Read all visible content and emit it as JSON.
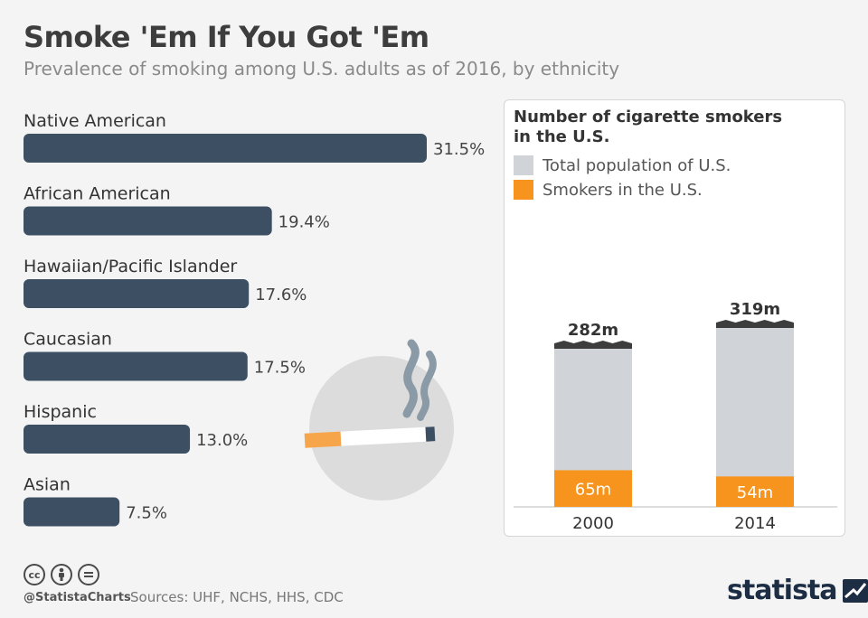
{
  "header": {
    "title": "Smoke 'Em If You Got 'Em",
    "subtitle": "Prevalence of smoking among U.S. adults as of 2016, by ethnicity"
  },
  "chart_data": [
    {
      "type": "bar",
      "orientation": "horizontal",
      "categories": [
        "Native American",
        "African American",
        "Hawaiian/Pacific Islander",
        "Caucasian",
        "Hispanic",
        "Asian"
      ],
      "values": [
        31.5,
        19.4,
        17.6,
        17.5,
        13.0,
        7.5
      ],
      "value_labels": [
        "31.5%",
        "19.4%",
        "17.6%",
        "17.5%",
        "13.0%",
        "7.5%"
      ],
      "unit": "%",
      "color": "#3d4f63",
      "grid": false
    },
    {
      "type": "bar",
      "stacked": true,
      "title": "Number of cigarette smokers in the U.S.",
      "categories": [
        "2000",
        "2014"
      ],
      "series": [
        {
          "name": "Total population of U.S.",
          "values": [
            282,
            319
          ],
          "labels": [
            "282m",
            "319m"
          ],
          "color": "#d0d4d8"
        },
        {
          "name": "Smokers in the U.S.",
          "values": [
            65,
            54
          ],
          "labels": [
            "65m",
            "54m"
          ],
          "color": "#f7941d"
        }
      ],
      "unit": "m",
      "legend_position": "top-left",
      "grid": false
    }
  ],
  "footer": {
    "icons": [
      "cc-icon",
      "attribution-icon",
      "no-derivatives-icon"
    ],
    "cc_label": "cc",
    "handle": "@StatistaCharts",
    "sources": "Sources: UHF, NCHS, HHS, CDC",
    "logo": "statista"
  }
}
